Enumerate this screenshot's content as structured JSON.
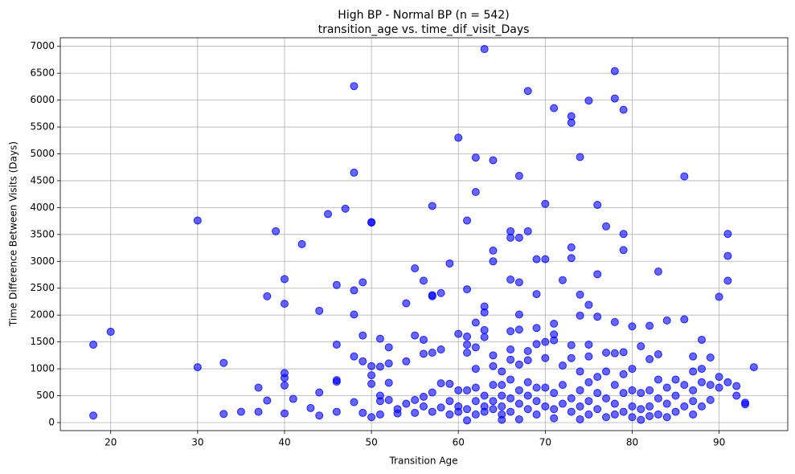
{
  "chart_data": {
    "type": "scatter",
    "title": "High BP - Normal BP (n = 542)",
    "subtitle": "transition_age vs. time_dif_visit_Days",
    "x_label": "Transition Age",
    "y_label": "Time Difference Between Visits (Days)",
    "color": "#0000ff",
    "grid": true,
    "xlim": [
      14.2,
      97.9
    ],
    "ylim": [
      -150,
      7160
    ],
    "xticks": [
      20,
      30,
      40,
      50,
      60,
      70,
      80,
      90
    ],
    "yticks": [
      0,
      500,
      1000,
      1500,
      2000,
      2500,
      3000,
      3500,
      4000,
      4500,
      5000,
      5500,
      6000,
      6500,
      7000
    ],
    "x": [
      18,
      18,
      20,
      30,
      30,
      33,
      33,
      35,
      37,
      37,
      38,
      38,
      39,
      40,
      40,
      40,
      40,
      40,
      40,
      41,
      42,
      43,
      44,
      44,
      44,
      45,
      46,
      46,
      46,
      46,
      46,
      47,
      48,
      48,
      48,
      48,
      48,
      48,
      49,
      49,
      49,
      49,
      50,
      50,
      50,
      50,
      50,
      50,
      51,
      51,
      51,
      51,
      51,
      52,
      52,
      52,
      52,
      53,
      53,
      54,
      54,
      54,
      55,
      55,
      55,
      55,
      56,
      56,
      56,
      56,
      56,
      57,
      57,
      57,
      57,
      57,
      57,
      58,
      58,
      58,
      58,
      59,
      59,
      59,
      59,
      60,
      60,
      60,
      60,
      60,
      61,
      61,
      61,
      61,
      61,
      61,
      61,
      61,
      62,
      62,
      62,
      62,
      62,
      62,
      62,
      62,
      63,
      63,
      63,
      63,
      63,
      63,
      63,
      63,
      64,
      64,
      64,
      64,
      64,
      64,
      64,
      64,
      65,
      65,
      65,
      65,
      65,
      65,
      66,
      66,
      66,
      66,
      66,
      66,
      66,
      66,
      66,
      67,
      67,
      67,
      67,
      67,
      67,
      67,
      67,
      67,
      68,
      68,
      68,
      68,
      68,
      68,
      68,
      69,
      69,
      69,
      69,
      69,
      69,
      69,
      70,
      70,
      70,
      70,
      70,
      70,
      71,
      71,
      71,
      71,
      71,
      71,
      71,
      72,
      72,
      72,
      72,
      73,
      73,
      73,
      73,
      73,
      73,
      73,
      73,
      74,
      74,
      74,
      74,
      74,
      74,
      74,
      75,
      75,
      75,
      75,
      75,
      75,
      75,
      76,
      76,
      76,
      76,
      76,
      76,
      77,
      77,
      77,
      77,
      77,
      78,
      78,
      78,
      78,
      78,
      78,
      78,
      79,
      79,
      79,
      79,
      79,
      79,
      79,
      80,
      80,
      80,
      80,
      80,
      81,
      81,
      81,
      81,
      82,
      82,
      82,
      82,
      82,
      83,
      83,
      83,
      83,
      83,
      84,
      84,
      84,
      84,
      85,
      85,
      85,
      86,
      86,
      86,
      86,
      87,
      87,
      87,
      87,
      87,
      88,
      88,
      88,
      88,
      89,
      89,
      89,
      90,
      90,
      90,
      91,
      91,
      91,
      91,
      92,
      92,
      93,
      93,
      94
    ],
    "values": [
      1450,
      130,
      1690,
      3760,
      1030,
      1110,
      160,
      200,
      200,
      650,
      2350,
      410,
      3560,
      2670,
      2210,
      920,
      830,
      690,
      170,
      440,
      3320,
      270,
      2080,
      560,
      130,
      3880,
      2560,
      1450,
      790,
      760,
      200,
      3980,
      6260,
      4650,
      2460,
      2010,
      1230,
      380,
      2610,
      1620,
      1140,
      180,
      3730,
      3720,
      1050,
      880,
      720,
      100,
      1560,
      1040,
      500,
      400,
      150,
      1400,
      1100,
      740,
      420,
      250,
      170,
      2220,
      1140,
      350,
      2870,
      1620,
      420,
      180,
      2640,
      1540,
      1280,
      480,
      300,
      4030,
      2370,
      2350,
      1300,
      560,
      200,
      2410,
      1360,
      730,
      280,
      2960,
      720,
      400,
      150,
      5300,
      1650,
      600,
      300,
      200,
      3760,
      2480,
      1600,
      1300,
      1450,
      600,
      250,
      40,
      4930,
      4290,
      1860,
      1400,
      1000,
      650,
      400,
      150,
      6950,
      2160,
      2050,
      1720,
      1590,
      500,
      300,
      200,
      4880,
      3200,
      3000,
      1250,
      1050,
      700,
      400,
      250,
      950,
      700,
      500,
      300,
      150,
      50,
      3560,
      3440,
      2660,
      1700,
      1360,
      1170,
      800,
      450,
      200,
      4590,
      3440,
      2610,
      2010,
      1730,
      1080,
      600,
      350,
      60,
      6170,
      3560,
      1330,
      1160,
      750,
      500,
      250,
      3040,
      2390,
      1760,
      1460,
      650,
      400,
      150,
      4070,
      3040,
      1500,
      1200,
      650,
      300,
      5850,
      1840,
      1640,
      1530,
      550,
      250,
      80,
      2650,
      1060,
      700,
      350,
      5700,
      5580,
      3260,
      3060,
      1440,
      1200,
      450,
      200,
      4940,
      2380,
      1990,
      950,
      600,
      300,
      60,
      5990,
      2190,
      1450,
      1230,
      750,
      400,
      150,
      4050,
      2760,
      1970,
      850,
      550,
      250,
      3650,
      1300,
      950,
      450,
      100,
      6540,
      6030,
      1870,
      1290,
      700,
      350,
      150,
      5820,
      3510,
      3210,
      1310,
      900,
      550,
      200,
      1790,
      1000,
      600,
      300,
      100,
      1420,
      550,
      250,
      50,
      1800,
      1180,
      600,
      300,
      120,
      2810,
      1270,
      800,
      450,
      150,
      1900,
      650,
      350,
      100,
      800,
      500,
      200,
      4580,
      1920,
      700,
      300,
      1230,
      950,
      600,
      400,
      150,
      1540,
      1000,
      750,
      300,
      1210,
      700,
      420,
      2340,
      850,
      650,
      3510,
      3100,
      2640,
      750,
      680,
      500,
      370,
      340,
      1030
    ]
  }
}
